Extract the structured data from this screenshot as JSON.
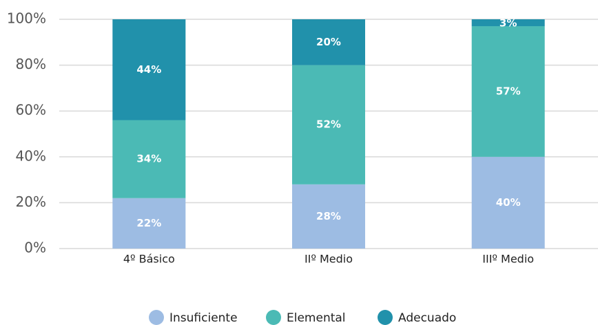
{
  "chart_data": {
    "type": "stacked_bar",
    "categories": [
      "4º Básico",
      "IIº Medio",
      "IIIº Medio"
    ],
    "series": [
      {
        "name": "Insuficiente",
        "color": "#9dbce3",
        "values": [
          22,
          28,
          40
        ],
        "value_labels": [
          "22%",
          "28%",
          "40%"
        ]
      },
      {
        "name": "Elemental",
        "color": "#4bbab5",
        "values": [
          34,
          52,
          57
        ],
        "value_labels": [
          "34%",
          "52%",
          "57%"
        ]
      },
      {
        "name": "Adecuado",
        "color": "#2191ab",
        "values": [
          44,
          20,
          3
        ],
        "value_labels": [
          "44%",
          "20%",
          "3%"
        ]
      }
    ],
    "ylim": [
      0,
      100
    ],
    "yticks": [
      {
        "value": 0,
        "label": "0%"
      },
      {
        "value": 20,
        "label": "20%"
      },
      {
        "value": 40,
        "label": "40%"
      },
      {
        "value": 60,
        "label": "60%"
      },
      {
        "value": 80,
        "label": "80%"
      },
      {
        "value": 100,
        "label": "100%"
      }
    ],
    "grid": true,
    "legend": "bottom"
  }
}
